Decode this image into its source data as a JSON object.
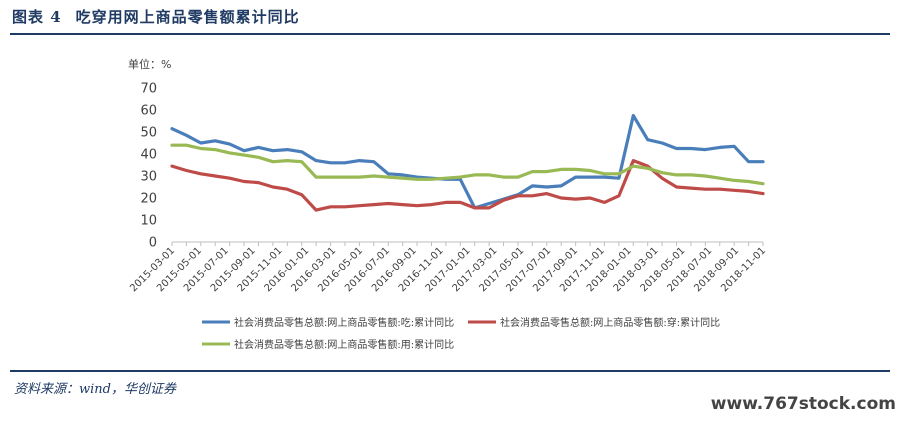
{
  "header": {
    "figure_label": "图表 4",
    "title": "吃穿用网上商品零售额累计同比"
  },
  "source": "资料来源：wind，华创证券",
  "watermark": "www.767stock.com",
  "chart_data": {
    "type": "line",
    "title": "",
    "xlabel": "",
    "ylabel": "",
    "unit_label": "单位：%",
    "ylim": [
      0,
      70
    ],
    "yticks": [
      0,
      10,
      20,
      30,
      40,
      50,
      60,
      70
    ],
    "grid": false,
    "legend_position": "bottom",
    "x_labels": [
      "2015-03-01",
      "2015-05-01",
      "2015-07-01",
      "2015-09-01",
      "2015-11-01",
      "2016-01-01",
      "2016-03-01",
      "2016-05-01",
      "2016-07-01",
      "2016-09-01",
      "2016-11-01",
      "2017-01-01",
      "2017-03-01",
      "2017-05-01",
      "2017-07-01",
      "2017-09-01",
      "2017-11-01",
      "2018-01-01",
      "2018-03-01",
      "2018-05-01",
      "2018-07-01",
      "2018-09-01",
      "2018-11-01"
    ],
    "x": [
      "2015-03",
      "2015-04",
      "2015-05",
      "2015-06",
      "2015-07",
      "2015-08",
      "2015-09",
      "2015-10",
      "2015-11",
      "2015-12",
      "2016-02",
      "2016-03",
      "2016-04",
      "2016-05",
      "2016-06",
      "2016-07",
      "2016-08",
      "2016-09",
      "2016-10",
      "2016-11",
      "2016-12",
      "2017-02",
      "2017-03",
      "2017-04",
      "2017-05",
      "2017-06",
      "2017-07",
      "2017-08",
      "2017-09",
      "2017-10",
      "2017-11",
      "2017-12",
      "2018-02",
      "2018-03",
      "2018-04",
      "2018-05",
      "2018-06",
      "2018-07",
      "2018-08",
      "2018-09",
      "2018-10",
      "2018-11"
    ],
    "series": [
      {
        "name": "社会消费品零售总额:网上商品零售额:吃:累计同比",
        "color": "#4a7ebb",
        "values": [
          51.5,
          48.5,
          45.0,
          46.0,
          44.5,
          41.5,
          43.0,
          41.5,
          42.0,
          41.0,
          37.0,
          36.0,
          36.0,
          37.0,
          36.5,
          31.0,
          30.5,
          29.5,
          29.0,
          28.5,
          28.5,
          15.5,
          17.5,
          19.5,
          21.5,
          25.5,
          25.0,
          25.5,
          29.5,
          29.5,
          29.5,
          29.0,
          57.5,
          46.5,
          45.0,
          42.5,
          42.5,
          42.0,
          43.0,
          43.5,
          36.5,
          36.5
        ]
      },
      {
        "name": "社会消费品零售总额:网上商品零售额:穿:累计同比",
        "color": "#be4b48",
        "values": [
          34.5,
          32.5,
          31.0,
          30.0,
          29.0,
          27.5,
          27.0,
          25.0,
          24.0,
          21.5,
          14.5,
          16.0,
          16.0,
          16.5,
          17.0,
          17.5,
          17.0,
          16.5,
          17.0,
          18.0,
          18.0,
          15.5,
          15.5,
          19.0,
          21.0,
          21.0,
          22.0,
          20.0,
          19.5,
          20.0,
          18.0,
          21.0,
          37.0,
          34.5,
          29.0,
          25.0,
          24.5,
          24.0,
          24.0,
          23.5,
          23.0,
          22.0
        ]
      },
      {
        "name": "社会消费品零售总额:网上商品零售额:用:累计同比",
        "color": "#98b954",
        "values": [
          44.0,
          44.0,
          42.5,
          42.0,
          40.5,
          39.5,
          38.5,
          36.5,
          37.0,
          36.5,
          29.5,
          29.5,
          29.5,
          29.5,
          30.0,
          29.5,
          29.0,
          28.5,
          28.5,
          29.0,
          29.5,
          30.5,
          30.5,
          29.5,
          29.5,
          32.0,
          32.0,
          33.0,
          33.0,
          32.5,
          31.0,
          31.0,
          34.5,
          33.5,
          31.5,
          30.5,
          30.5,
          30.0,
          29.0,
          28.0,
          27.5,
          26.5
        ]
      }
    ]
  }
}
